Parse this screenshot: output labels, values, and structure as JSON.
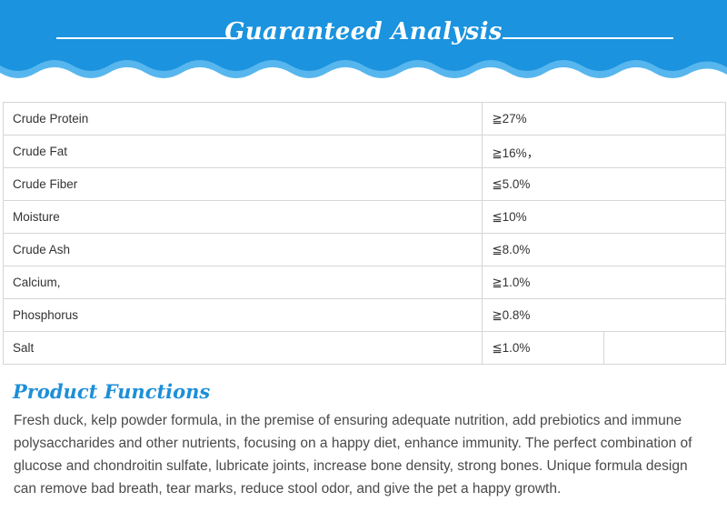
{
  "colors": {
    "banner_blue": "#1b93de",
    "banner_light": "#57b6ee",
    "heading_blue": "#1d8fd8",
    "border": "#d6d6d6"
  },
  "banner": {
    "title": "Guaranteed Analysis"
  },
  "analysis": {
    "rows": [
      {
        "nutrient": "Crude Protein",
        "value": "≧27%"
      },
      {
        "nutrient": "Crude Fat",
        "value": "≧16%，"
      },
      {
        "nutrient": "Crude Fiber",
        "value": "≦5.0%"
      },
      {
        "nutrient": "Moisture",
        "value": "≦10%"
      },
      {
        "nutrient": "Crude Ash",
        "value": "≦8.0%"
      },
      {
        "nutrient": "Calcium,",
        "value": "≧1.0%"
      },
      {
        "nutrient": "Phosphorus",
        "value": "≧0.8%"
      },
      {
        "nutrient": "Salt",
        "value": "≦1.0%"
      }
    ]
  },
  "product_functions": {
    "title": "Product Functions",
    "body": "Fresh duck, kelp powder formula, in the premise of ensuring adequate nutrition, add prebiotics and immune polysaccharides and other nutrients, focusing on a happy diet, enhance immunity. The perfect combination of glucose and chondroitin sulfate, lubricate joints, increase bone density, strong bones. Unique formula design can remove bad breath, tear marks, reduce stool odor, and give the pet a happy growth."
  }
}
